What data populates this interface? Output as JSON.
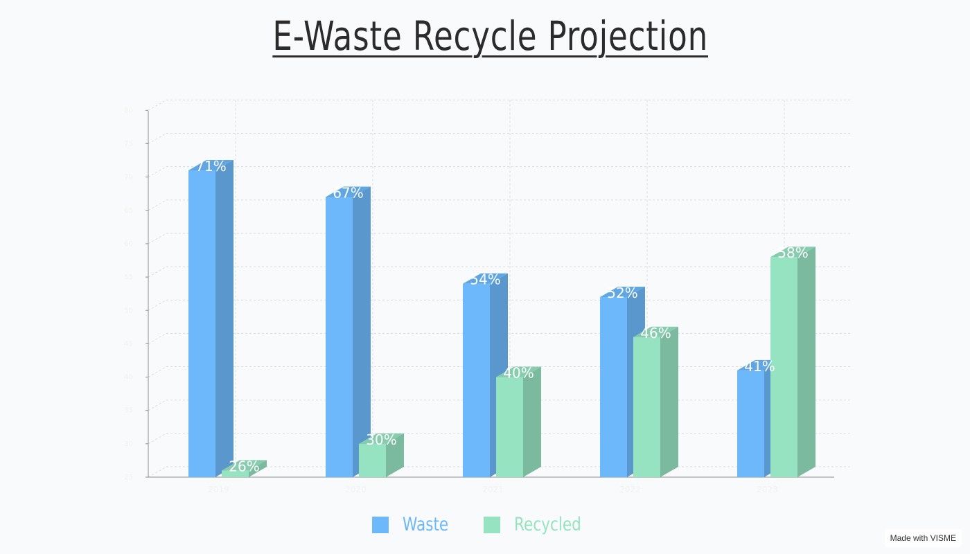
{
  "title": "E-Waste Recycle Projection",
  "chart_data": {
    "type": "bar",
    "subtype": "3d-grouped",
    "title": "E-Waste Recycle Projection",
    "categories": [
      "2019",
      "2020",
      "2021",
      "2022",
      "2023"
    ],
    "series": [
      {
        "name": "Waste",
        "color": "#6cb8fa",
        "values": [
          71,
          67,
          54,
          52,
          41
        ],
        "labels": [
          "71%",
          "67%",
          "54%",
          "52%",
          "41%"
        ]
      },
      {
        "name": "Recycled",
        "color": "#96e3c1",
        "values": [
          26,
          30,
          40,
          46,
          58
        ],
        "labels": [
          "26%",
          "30%",
          "40%",
          "46%",
          "58%"
        ]
      }
    ],
    "ylim": [
      25,
      80
    ],
    "yticks": [
      "25",
      "30",
      "35",
      "40",
      "45",
      "50",
      "55",
      "60",
      "65",
      "70",
      "75",
      "80"
    ],
    "grid": true,
    "legend_position": "bottom"
  },
  "watermark": "Made with VISME"
}
